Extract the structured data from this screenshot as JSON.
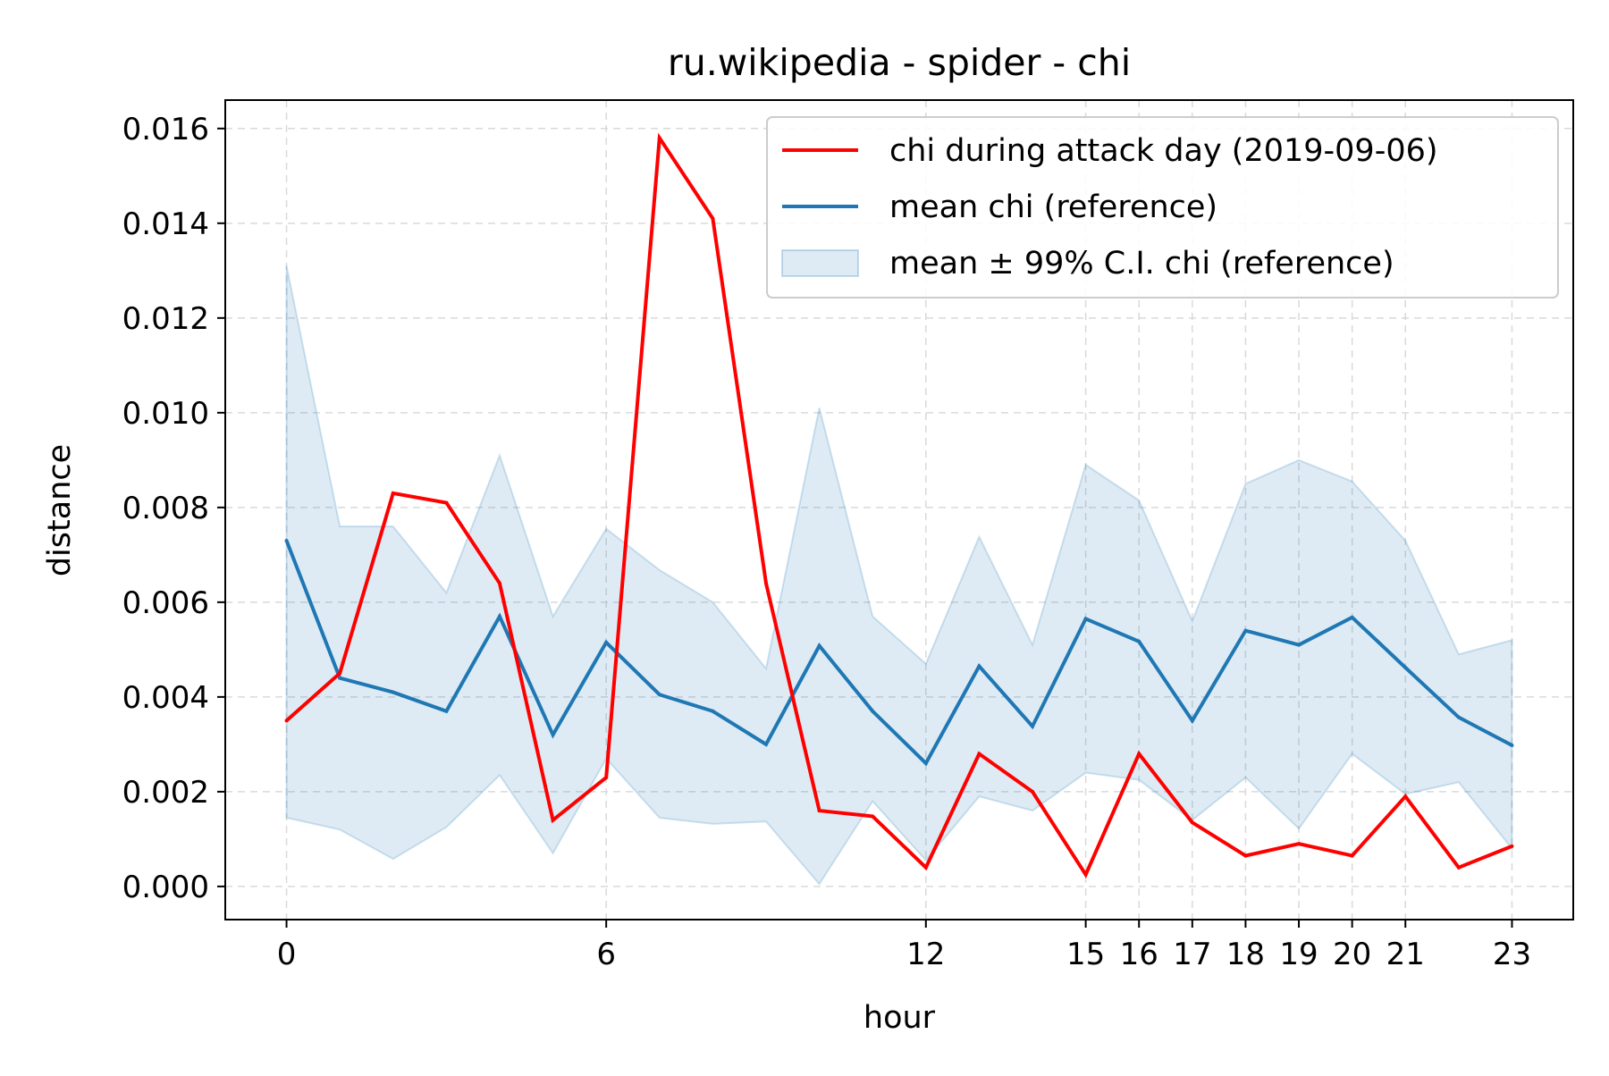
{
  "chart_data": {
    "type": "line",
    "title": "ru.wikipedia - spider - chi",
    "xlabel": "hour",
    "ylabel": "distance",
    "xlim": [
      -1.15,
      24.15
    ],
    "ylim": [
      -0.0007,
      0.0166
    ],
    "x_ticks": [
      0,
      6,
      12,
      15,
      16,
      17,
      18,
      19,
      20,
      21,
      23
    ],
    "x_tick_labels": [
      "0",
      "6",
      "12",
      "15",
      "16",
      "17",
      "18",
      "19",
      "20",
      "21",
      "23"
    ],
    "y_ticks": [
      0.0,
      0.002,
      0.004,
      0.006,
      0.008,
      0.01,
      0.012,
      0.014,
      0.016
    ],
    "y_tick_labels": [
      "0.000",
      "0.002",
      "0.004",
      "0.006",
      "0.008",
      "0.010",
      "0.012",
      "0.014",
      "0.016"
    ],
    "grid": true,
    "legend_position": "top-right",
    "x": [
      0,
      1,
      2,
      3,
      4,
      5,
      6,
      7,
      8,
      9,
      10,
      11,
      12,
      13,
      14,
      15,
      16,
      17,
      18,
      19,
      20,
      21,
      22,
      23
    ],
    "series": [
      {
        "name": "chi during attack day (2019-09-06)",
        "color": "#ff0000",
        "kind": "line",
        "values": [
          0.0035,
          0.0045,
          0.0083,
          0.0081,
          0.0064,
          0.0014,
          0.0023,
          0.0158,
          0.0141,
          0.0064,
          0.0016,
          0.00148,
          0.0004,
          0.0028,
          0.002,
          0.00025,
          0.0028,
          0.00135,
          0.00065,
          0.0009,
          0.00065,
          0.0019,
          0.0004,
          0.00085
        ]
      },
      {
        "name": "mean chi (reference)",
        "color": "#1f77b4",
        "kind": "line",
        "values": [
          0.0073,
          0.0044,
          0.0041,
          0.0037,
          0.0057,
          0.0032,
          0.00515,
          0.00405,
          0.0037,
          0.003,
          0.00508,
          0.0037,
          0.0026,
          0.00465,
          0.00338,
          0.00565,
          0.00517,
          0.0035,
          0.0054,
          0.0051,
          0.00568,
          0.00462,
          0.00357,
          0.00298
        ]
      },
      {
        "name": "mean ± 99% C.I. chi (reference)",
        "color": "#1f77b4",
        "kind": "band",
        "lower": [
          0.00145,
          0.0012,
          0.00058,
          0.00125,
          0.00235,
          0.0007,
          0.0027,
          0.00145,
          0.00132,
          0.00137,
          5e-05,
          0.0018,
          0.00055,
          0.0019,
          0.0016,
          0.0024,
          0.00225,
          0.0014,
          0.0023,
          0.00122,
          0.0028,
          0.00195,
          0.0022,
          0.0008
        ],
        "upper": [
          0.0131,
          0.0076,
          0.0076,
          0.0062,
          0.0091,
          0.0057,
          0.00755,
          0.00668,
          0.006,
          0.0046,
          0.0101,
          0.0057,
          0.0047,
          0.00738,
          0.0051,
          0.0089,
          0.00815,
          0.0056,
          0.0085,
          0.009,
          0.00855,
          0.0073,
          0.0049,
          0.0052
        ]
      }
    ]
  }
}
